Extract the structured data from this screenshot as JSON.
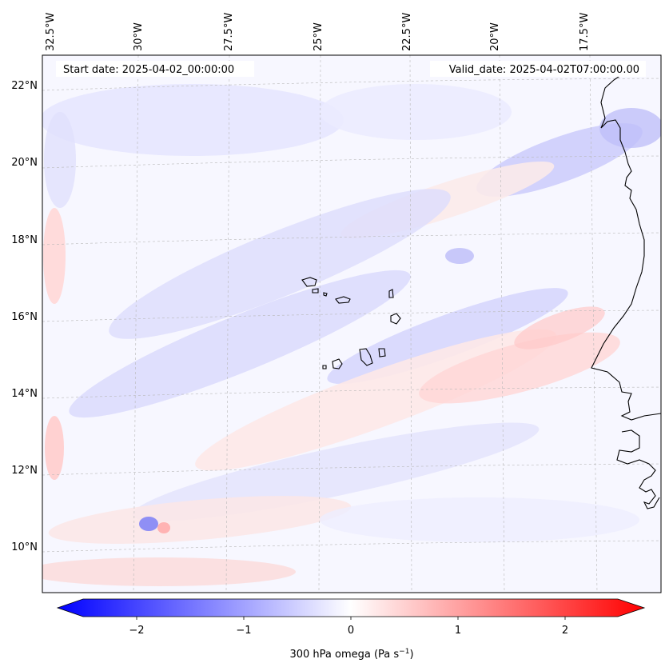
{
  "header": {
    "start_date": "Start date: 2025-04-02_00:00:00",
    "valid_date": "Valid_date: 2025-04-02T07:00:00.00"
  },
  "axes": {
    "lon_labels": [
      "32.5°W",
      "30°W",
      "27.5°W",
      "25°W",
      "22.5°W",
      "20°W",
      "17.5°W"
    ],
    "lat_labels": [
      "22°N",
      "20°N",
      "18°N",
      "16°N",
      "14°N",
      "12°N",
      "10°N"
    ]
  },
  "colorbar": {
    "label_main": "300 hPa omega (Pa s",
    "label_exp": "−1",
    "label_close": ")",
    "ticks": [
      "−2",
      "−1",
      "0",
      "1",
      "2"
    ],
    "range": [
      -2.75,
      2.75
    ],
    "negative_color": "#0000ff",
    "zero_color": "#ffffff",
    "positive_color": "#ff0000"
  }
}
